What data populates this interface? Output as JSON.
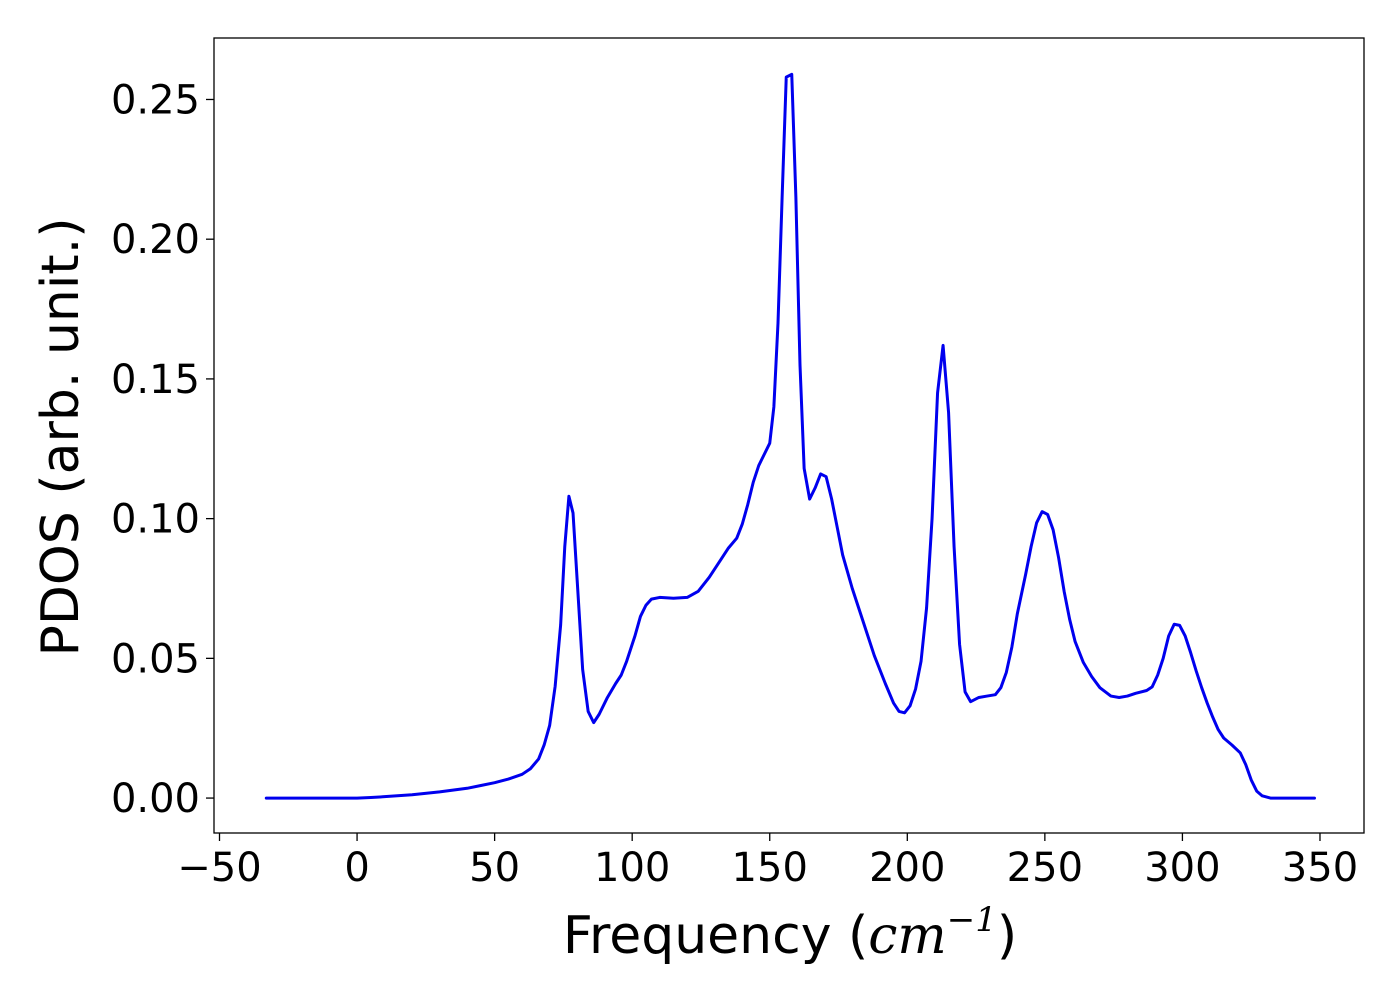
{
  "chart_data": {
    "type": "line",
    "title": "",
    "xlabel_prefix": "Frequency (",
    "xlabel_unit": "cm",
    "xlabel_exp": "−1",
    "xlabel_suffix": ")",
    "ylabel": "PDOS (arb. unit.)",
    "xlim": [
      -52,
      366
    ],
    "ylim": [
      -0.0125,
      0.272
    ],
    "xticks": [
      -50,
      0,
      50,
      100,
      150,
      200,
      250,
      300,
      350
    ],
    "xtick_labels": [
      "−50",
      "0",
      "50",
      "100",
      "150",
      "200",
      "250",
      "300",
      "350"
    ],
    "yticks": [
      0.0,
      0.05,
      0.1,
      0.15,
      0.2,
      0.25
    ],
    "ytick_labels": [
      "0.00",
      "0.05",
      "0.10",
      "0.15",
      "0.20",
      "0.25"
    ],
    "grid": false,
    "line_color": "#0000ee",
    "series": [
      {
        "points": [
          [
            -33,
            0.0
          ],
          [
            0,
            0.0
          ],
          [
            5,
            0.0002
          ],
          [
            10,
            0.0005
          ],
          [
            20,
            0.0012
          ],
          [
            30,
            0.0022
          ],
          [
            40,
            0.0035
          ],
          [
            45,
            0.0045
          ],
          [
            50,
            0.0055
          ],
          [
            55,
            0.0068
          ],
          [
            60,
            0.0085
          ],
          [
            63,
            0.0105
          ],
          [
            66,
            0.014
          ],
          [
            68,
            0.019
          ],
          [
            70,
            0.026
          ],
          [
            72,
            0.04
          ],
          [
            74,
            0.062
          ],
          [
            75.5,
            0.09
          ],
          [
            77,
            0.108
          ],
          [
            78.5,
            0.102
          ],
          [
            80,
            0.078
          ],
          [
            82,
            0.046
          ],
          [
            84,
            0.031
          ],
          [
            86,
            0.027
          ],
          [
            88,
            0.03
          ],
          [
            91,
            0.036
          ],
          [
            94,
            0.041
          ],
          [
            96,
            0.044
          ],
          [
            98,
            0.049
          ],
          [
            101,
            0.058
          ],
          [
            103,
            0.065
          ],
          [
            105,
            0.069
          ],
          [
            107,
            0.0712
          ],
          [
            110,
            0.0718
          ],
          [
            115,
            0.0715
          ],
          [
            120,
            0.0718
          ],
          [
            124,
            0.074
          ],
          [
            128,
            0.079
          ],
          [
            132,
            0.085
          ],
          [
            135,
            0.0895
          ],
          [
            138,
            0.093
          ],
          [
            140,
            0.098
          ],
          [
            142,
            0.105
          ],
          [
            144,
            0.113
          ],
          [
            146,
            0.119
          ],
          [
            148,
            0.123
          ],
          [
            150,
            0.127
          ],
          [
            151.5,
            0.14
          ],
          [
            153,
            0.17
          ],
          [
            154.5,
            0.215
          ],
          [
            156,
            0.258
          ],
          [
            158,
            0.259
          ],
          [
            159.5,
            0.215
          ],
          [
            161,
            0.155
          ],
          [
            162.5,
            0.118
          ],
          [
            164.5,
            0.107
          ],
          [
            166.5,
            0.111
          ],
          [
            168.5,
            0.116
          ],
          [
            170.5,
            0.115
          ],
          [
            172.5,
            0.107
          ],
          [
            174.5,
            0.097
          ],
          [
            176.5,
            0.087
          ],
          [
            180,
            0.075
          ],
          [
            184,
            0.063
          ],
          [
            188,
            0.051
          ],
          [
            192,
            0.041
          ],
          [
            195,
            0.034
          ],
          [
            197,
            0.031
          ],
          [
            199,
            0.0305
          ],
          [
            201,
            0.033
          ],
          [
            203,
            0.039
          ],
          [
            205,
            0.049
          ],
          [
            207,
            0.068
          ],
          [
            209,
            0.1
          ],
          [
            211,
            0.145
          ],
          [
            213,
            0.162
          ],
          [
            215,
            0.138
          ],
          [
            217,
            0.09
          ],
          [
            219,
            0.055
          ],
          [
            221,
            0.038
          ],
          [
            223,
            0.0345
          ],
          [
            226,
            0.036
          ],
          [
            229,
            0.0365
          ],
          [
            232,
            0.037
          ],
          [
            234,
            0.0395
          ],
          [
            236,
            0.045
          ],
          [
            238,
            0.054
          ],
          [
            240,
            0.066
          ],
          [
            243,
            0.08
          ],
          [
            245,
            0.09
          ],
          [
            247,
            0.0985
          ],
          [
            249,
            0.1025
          ],
          [
            251,
            0.1015
          ],
          [
            253,
            0.096
          ],
          [
            255,
            0.086
          ],
          [
            257,
            0.074
          ],
          [
            259,
            0.064
          ],
          [
            261,
            0.056
          ],
          [
            264,
            0.0485
          ],
          [
            267,
            0.0435
          ],
          [
            270,
            0.0395
          ],
          [
            274,
            0.0365
          ],
          [
            277,
            0.036
          ],
          [
            280,
            0.0365
          ],
          [
            283,
            0.0375
          ],
          [
            287,
            0.0385
          ],
          [
            289,
            0.0398
          ],
          [
            291,
            0.044
          ],
          [
            293,
            0.05
          ],
          [
            295,
            0.058
          ],
          [
            297,
            0.0622
          ],
          [
            299,
            0.0618
          ],
          [
            301,
            0.058
          ],
          [
            303,
            0.052
          ],
          [
            305,
            0.0455
          ],
          [
            307,
            0.0395
          ],
          [
            309,
            0.034
          ],
          [
            311,
            0.029
          ],
          [
            313,
            0.0245
          ],
          [
            315,
            0.0215
          ],
          [
            318,
            0.019
          ],
          [
            321,
            0.0162
          ],
          [
            323,
            0.012
          ],
          [
            325,
            0.0065
          ],
          [
            327,
            0.0025
          ],
          [
            329,
            0.0008
          ],
          [
            332,
            0.0
          ],
          [
            348,
            0.0
          ]
        ]
      }
    ]
  }
}
